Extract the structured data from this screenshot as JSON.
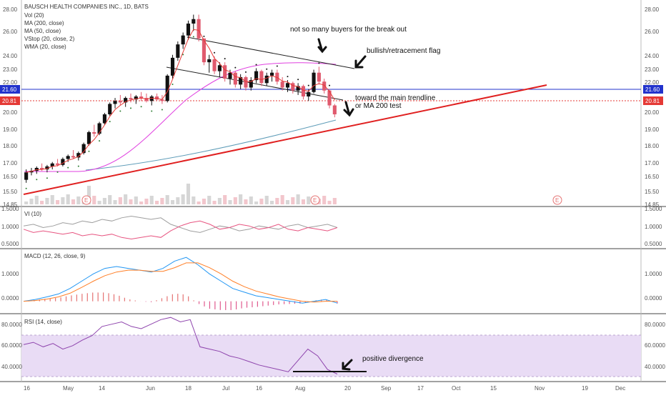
{
  "header": {
    "title": "BAUSCH HEALTH COMPANIES INC., 1D, BATS",
    "legend": [
      "Vol (20)",
      "MA (200, close)",
      "MA (50, close)",
      "VStop (20, close, 2)",
      "WMA (20, close)"
    ]
  },
  "price_axis": {
    "ticks": [
      "28.00",
      "26.00",
      "24.00",
      "23.00",
      "22.00",
      "21.00",
      "20.00",
      "19.00",
      "18.00",
      "17.00",
      "16.50",
      "15.50",
      "14.85"
    ],
    "hline_blue": "21.60",
    "hline_red": "20.81"
  },
  "annotations": {
    "no_buyers": "not so many buyers for the break out",
    "flag": "bullish/retracement flag",
    "trendline_1": "toward the main trendline",
    "trendline_2": "or MA 200 test",
    "divergence": "positive divergence"
  },
  "earnings_marker": "E",
  "panes": {
    "vi": {
      "title": "VI (10)",
      "ticks": [
        "1.5000",
        "1.0000",
        "0.5000"
      ]
    },
    "macd": {
      "title": "MACD (12, 26, close, 9)",
      "ticks": [
        "1.0000",
        "0.0000"
      ]
    },
    "rsi": {
      "title": "RSI (14, close)",
      "ticks": [
        "80.0000",
        "60.0000",
        "40.0000"
      ]
    }
  },
  "x_axis": [
    "16",
    "May",
    "14",
    "Jun",
    "18",
    "Jul",
    "16",
    "Aug",
    "20",
    "Sep",
    "17",
    "Oct",
    "15",
    "Nov",
    "19",
    "Dec"
  ],
  "colors": {
    "up_candle": "#111111",
    "down_candle": "#e05a6e",
    "ma200": "#5e9cb8",
    "ma50": "#e040e0",
    "wma": "#e53935",
    "trendline": "#e02020",
    "hline_blue": "#2233cc",
    "hline_red": "#e53935",
    "macd": "#2196f3",
    "signal": "#ff7f27",
    "rsi": "#8e44ad",
    "rsi_band": "#e9dcf5"
  },
  "chart_data": [
    {
      "type": "candlestick",
      "title": "BAUSCH HEALTH COMPANIES INC., 1D, BATS",
      "ylim": [
        14.85,
        28.2
      ],
      "ohlc": [
        [
          16.5,
          17.2,
          16.3,
          17.0
        ],
        [
          17.0,
          17.3,
          16.8,
          17.1
        ],
        [
          17.1,
          17.4,
          16.9,
          17.3
        ],
        [
          17.3,
          17.6,
          17.1,
          17.2
        ],
        [
          17.2,
          17.5,
          17.0,
          17.4
        ],
        [
          17.4,
          17.7,
          17.2,
          17.6
        ],
        [
          17.6,
          17.9,
          17.4,
          17.5
        ],
        [
          17.5,
          18.0,
          17.4,
          17.9
        ],
        [
          17.9,
          18.2,
          17.7,
          18.1
        ],
        [
          18.1,
          18.5,
          17.9,
          18.0
        ],
        [
          18.0,
          18.4,
          17.8,
          18.3
        ],
        [
          18.3,
          19.0,
          18.2,
          18.9
        ],
        [
          18.9,
          19.8,
          18.8,
          19.7
        ],
        [
          19.7,
          20.2,
          19.4,
          19.6
        ],
        [
          19.6,
          20.4,
          19.5,
          20.3
        ],
        [
          20.3,
          21.0,
          20.2,
          20.9
        ],
        [
          20.9,
          21.7,
          20.8,
          21.6
        ],
        [
          21.6,
          22.0,
          21.3,
          21.8
        ],
        [
          21.8,
          22.2,
          21.5,
          21.7
        ],
        [
          21.7,
          22.1,
          21.4,
          22.0
        ],
        [
          22.0,
          22.3,
          21.7,
          21.9
        ],
        [
          21.9,
          22.2,
          21.6,
          22.1
        ],
        [
          22.1,
          22.4,
          21.8,
          22.0
        ],
        [
          22.0,
          22.3,
          21.7,
          21.8
        ],
        [
          21.8,
          22.2,
          21.5,
          22.1
        ],
        [
          22.1,
          22.3,
          21.8,
          21.9
        ],
        [
          21.9,
          22.2,
          21.6,
          21.8
        ],
        [
          21.8,
          23.6,
          21.7,
          23.5
        ],
        [
          23.5,
          24.9,
          23.3,
          24.7
        ],
        [
          24.7,
          25.8,
          24.5,
          25.6
        ],
        [
          25.6,
          26.4,
          25.3,
          26.2
        ],
        [
          26.2,
          27.2,
          25.9,
          27.0
        ],
        [
          27.0,
          27.6,
          26.5,
          27.3
        ],
        [
          27.3,
          27.6,
          25.8,
          26.0
        ],
        [
          26.0,
          25.9,
          24.2,
          24.4
        ],
        [
          24.4,
          24.9,
          23.7,
          24.6
        ],
        [
          24.6,
          24.8,
          23.6,
          23.8
        ],
        [
          23.8,
          24.4,
          23.4,
          24.2
        ],
        [
          24.2,
          24.4,
          23.1,
          23.3
        ],
        [
          23.3,
          23.9,
          22.9,
          23.7
        ],
        [
          23.7,
          23.8,
          22.7,
          22.9
        ],
        [
          22.9,
          23.6,
          22.6,
          23.4
        ],
        [
          23.4,
          23.5,
          22.5,
          22.7
        ],
        [
          22.7,
          23.4,
          22.5,
          23.2
        ],
        [
          23.2,
          24.0,
          23.0,
          23.8
        ],
        [
          23.8,
          23.9,
          22.8,
          23.0
        ],
        [
          23.0,
          23.7,
          22.8,
          23.5
        ],
        [
          23.5,
          23.9,
          23.1,
          23.7
        ],
        [
          23.7,
          23.9,
          22.9,
          23.1
        ],
        [
          23.1,
          23.4,
          22.5,
          22.7
        ],
        [
          22.7,
          23.2,
          22.4,
          23.0
        ],
        [
          23.0,
          23.1,
          22.3,
          22.5
        ],
        [
          22.5,
          23.0,
          22.2,
          22.8
        ],
        [
          22.8,
          22.9,
          21.9,
          22.1
        ],
        [
          22.1,
          22.6,
          21.8,
          22.4
        ],
        [
          22.4,
          23.9,
          22.3,
          23.7
        ],
        [
          23.7,
          24.1,
          22.9,
          23.1
        ],
        [
          23.1,
          23.3,
          22.3,
          22.5
        ],
        [
          22.5,
          22.6,
          21.3,
          21.5
        ],
        [
          21.5,
          21.6,
          20.7,
          20.9
        ]
      ],
      "ma200": {
        "start": [
          120,
          16.7
        ],
        "end": [
          470,
          19.6
        ]
      },
      "hlines": [
        21.6,
        20.81
      ],
      "trendline": {
        "from": [
          33,
          15.55
        ],
        "to": [
          765,
          22.0
        ]
      }
    },
    {
      "type": "line",
      "title": "VI (10)",
      "series": [
        {
          "values": [
            1.05,
            1.1,
            1.0,
            1.05,
            1.15,
            1.1,
            1.2,
            1.15,
            1.25,
            1.2,
            1.3,
            1.35,
            1.3,
            1.25,
            1.3,
            1.1,
            1.0,
            0.9,
            0.85,
            0.95,
            1.05,
            1.0,
            0.9,
            0.95,
            1.05,
            1.0,
            0.95,
            1.05,
            1.1,
            1.0,
            1.05,
            1.1,
            1.0
          ]
        },
        {
          "values": [
            0.95,
            0.85,
            0.9,
            0.85,
            0.8,
            0.85,
            0.75,
            0.8,
            0.75,
            0.8,
            0.7,
            0.65,
            0.7,
            0.75,
            0.7,
            0.9,
            1.05,
            1.15,
            1.2,
            1.1,
            0.95,
            1.0,
            1.1,
            1.05,
            0.95,
            1.0,
            1.1,
            0.95,
            0.9,
            1.0,
            0.95,
            0.9,
            1.0
          ]
        }
      ],
      "ylim": [
        0.4,
        1.6
      ]
    },
    {
      "type": "line",
      "title": "MACD (12, 26, close, 9)",
      "series": [
        {
          "values": [
            0.0,
            0.05,
            0.12,
            0.2,
            0.35,
            0.55,
            0.75,
            0.9,
            0.95,
            0.9,
            0.85,
            0.8,
            0.9,
            1.1,
            1.2,
            1.0,
            0.75,
            0.55,
            0.35,
            0.25,
            0.15,
            0.1,
            0.05,
            0.0,
            -0.05,
            0.0,
            0.05,
            -0.05
          ]
        },
        {
          "values": [
            0.0,
            0.02,
            0.06,
            0.12,
            0.22,
            0.38,
            0.55,
            0.7,
            0.8,
            0.85,
            0.85,
            0.82,
            0.82,
            0.92,
            1.05,
            1.05,
            0.92,
            0.75,
            0.55,
            0.4,
            0.28,
            0.2,
            0.12,
            0.06,
            0.0,
            -0.02,
            0.0,
            0.0
          ]
        }
      ],
      "ylim": [
        -0.3,
        1.4
      ]
    },
    {
      "type": "line",
      "title": "RSI (14, close)",
      "series": [
        {
          "values": [
            62,
            64,
            60,
            63,
            58,
            61,
            66,
            70,
            78,
            80,
            82,
            78,
            76,
            80,
            84,
            86,
            82,
            84,
            60,
            58,
            56,
            52,
            50,
            47,
            44,
            42,
            40,
            38,
            48,
            58,
            52,
            40,
            36
          ]
        }
      ],
      "ylim": [
        30,
        88
      ],
      "bands": [
        30,
        70
      ]
    }
  ]
}
